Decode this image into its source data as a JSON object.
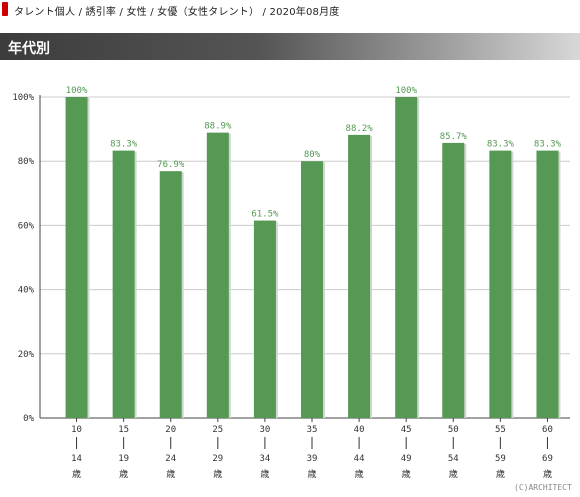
{
  "breadcrumb": {
    "text": "タレント個人 / 誘引率 / 女性 / 女優（女性タレント） / 2020年08月度"
  },
  "header": {
    "title": "年代別"
  },
  "copyright": "(C)ARCHITECT",
  "colors": {
    "bar": "#559955",
    "bar_shadow": "#cfd8cf",
    "label": "#559955",
    "grid": "#cccccc",
    "axis": "#444444",
    "accent": "#cc0000"
  },
  "chart_data": {
    "type": "bar",
    "title": "",
    "xlabel": "",
    "ylabel": "",
    "ylim": [
      0,
      100
    ],
    "y_ticks": [
      0,
      20,
      40,
      60,
      80,
      100
    ],
    "y_tick_labels": [
      "0%",
      "20%",
      "40%",
      "60%",
      "80%",
      "100%"
    ],
    "grid": true,
    "categories": [
      {
        "start": "10",
        "end": "14",
        "unit": "歳"
      },
      {
        "start": "15",
        "end": "19",
        "unit": "歳"
      },
      {
        "start": "20",
        "end": "24",
        "unit": "歳"
      },
      {
        "start": "25",
        "end": "29",
        "unit": "歳"
      },
      {
        "start": "30",
        "end": "34",
        "unit": "歳"
      },
      {
        "start": "35",
        "end": "39",
        "unit": "歳"
      },
      {
        "start": "40",
        "end": "44",
        "unit": "歳"
      },
      {
        "start": "45",
        "end": "49",
        "unit": "歳"
      },
      {
        "start": "50",
        "end": "54",
        "unit": "歳"
      },
      {
        "start": "55",
        "end": "59",
        "unit": "歳"
      },
      {
        "start": "60",
        "end": "69",
        "unit": "歳"
      }
    ],
    "values": [
      100,
      83.3,
      76.9,
      88.9,
      61.5,
      80,
      88.2,
      100,
      85.7,
      83.3,
      83.3
    ],
    "value_labels": [
      "100%",
      "83.3%",
      "76.9%",
      "88.9%",
      "61.5%",
      "80%",
      "88.2%",
      "100%",
      "85.7%",
      "83.3%",
      "83.3%"
    ]
  }
}
